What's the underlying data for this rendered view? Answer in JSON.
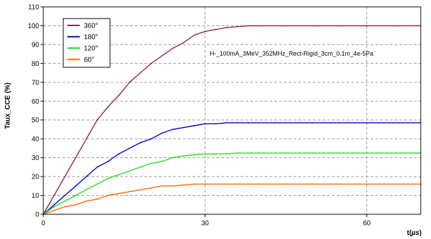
{
  "chart_data": {
    "type": "line",
    "title": "",
    "ylabel": "Taux_CCE (%)",
    "xlabel": "t(µs)",
    "xlabel_prefix": "t(",
    "xlabel_unit": "µs",
    "xlabel_suffix": ")",
    "annotation": "H-_100mA_3MeV_352MHz_Rect-Rigid_3cm_0.1m_4e-5Pa",
    "xlim": [
      0,
      70
    ],
    "ylim": [
      0,
      110
    ],
    "x_ticks": [
      0,
      30,
      60
    ],
    "y_ticks": [
      0,
      10,
      20,
      30,
      40,
      50,
      60,
      70,
      80,
      90,
      100,
      110
    ],
    "grid": true,
    "legend_position": "top-left",
    "series": [
      {
        "name": "360°",
        "color": "#8B2252",
        "x": [
          0,
          2,
          4,
          6,
          8,
          10,
          12,
          14,
          16,
          18,
          20,
          22,
          24,
          26,
          28,
          30,
          32,
          34,
          36,
          38,
          40,
          45,
          50,
          55,
          60,
          65,
          70
        ],
        "y": [
          0,
          10,
          20,
          30,
          40,
          50,
          57,
          63,
          70,
          75,
          80,
          84,
          88,
          91,
          95,
          97,
          98,
          99,
          99.5,
          100,
          100,
          100,
          100,
          100,
          100,
          100,
          100
        ]
      },
      {
        "name": "180°",
        "color": "#0000CC",
        "x": [
          0,
          2,
          4,
          6,
          8,
          10,
          12,
          14,
          16,
          18,
          20,
          22,
          24,
          26,
          28,
          30,
          32,
          34,
          36,
          38,
          40,
          45,
          50,
          55,
          60,
          65,
          70
        ],
        "y": [
          0,
          5,
          10,
          15,
          20,
          25,
          28,
          32,
          35,
          38,
          40,
          43,
          45,
          46,
          47,
          48,
          48,
          48.5,
          48.5,
          48.5,
          48.5,
          48.5,
          48.5,
          48.5,
          48.5,
          48.5,
          48.5
        ]
      },
      {
        "name": "120°",
        "color": "#22DD22",
        "x": [
          0,
          2,
          4,
          6,
          8,
          10,
          12,
          14,
          16,
          18,
          20,
          22,
          24,
          26,
          28,
          30,
          32,
          34,
          36,
          38,
          40,
          45,
          50,
          55,
          60,
          65,
          70
        ],
        "y": [
          0,
          4,
          7,
          10,
          13,
          16,
          19,
          21,
          23,
          25,
          27,
          28,
          30,
          31,
          31.5,
          32,
          32,
          32,
          32.5,
          32.5,
          32.5,
          32.5,
          32.5,
          32.5,
          32.5,
          32.5,
          32.5
        ]
      },
      {
        "name": "60°",
        "color": "#FF6600",
        "x": [
          0,
          2,
          4,
          6,
          8,
          10,
          12,
          14,
          16,
          18,
          20,
          22,
          24,
          26,
          28,
          30,
          32,
          34,
          36,
          38,
          40,
          45,
          50,
          55,
          60,
          65,
          70
        ],
        "y": [
          0,
          2,
          4,
          5,
          7,
          8,
          10,
          11,
          12,
          13,
          14,
          15,
          15,
          15.5,
          16,
          16,
          16,
          16,
          16,
          16,
          16,
          16,
          16,
          16,
          16,
          16,
          16
        ]
      }
    ]
  }
}
